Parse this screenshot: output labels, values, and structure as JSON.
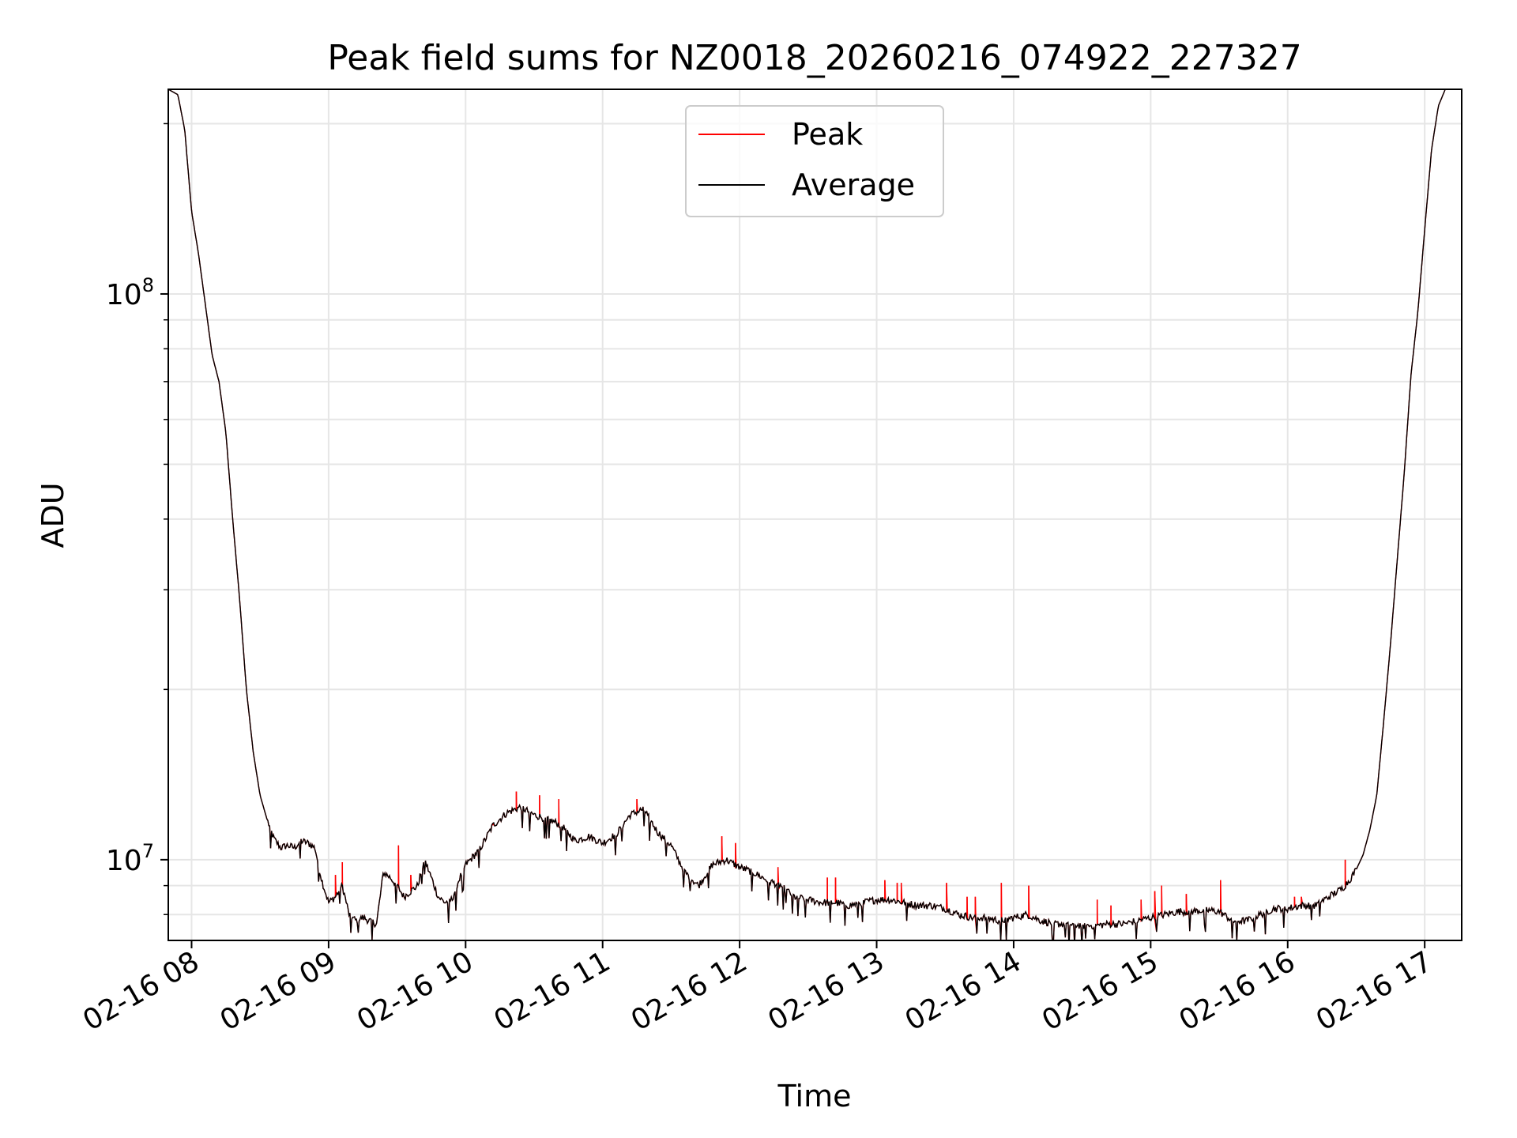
{
  "chart_data": {
    "type": "line",
    "title": "Peak field sums for NZ0018_20260216_074922_227327",
    "xlabel": "Time",
    "ylabel": "ADU",
    "yscale": "log",
    "ylim": [
      7200000,
      230000000
    ],
    "xlim": [
      7.83,
      17.27
    ],
    "grid": true,
    "legend": {
      "position": "top-center",
      "entries": [
        "Peak",
        "Average"
      ]
    },
    "colors": {
      "peak": "#ff0000",
      "average": "#000000",
      "grid": "#e6e6e6"
    },
    "x_ticks": [
      {
        "value": 8,
        "label": "02-16 08"
      },
      {
        "value": 9,
        "label": "02-16 09"
      },
      {
        "value": 10,
        "label": "02-16 10"
      },
      {
        "value": 11,
        "label": "02-16 11"
      },
      {
        "value": 12,
        "label": "02-16 12"
      },
      {
        "value": 13,
        "label": "02-16 13"
      },
      {
        "value": 14,
        "label": "02-16 14"
      },
      {
        "value": 15,
        "label": "02-16 15"
      },
      {
        "value": 16,
        "label": "02-16 16"
      },
      {
        "value": 17,
        "label": "02-16 17"
      }
    ],
    "y_ticks": [
      {
        "value": 10000000,
        "base": "10",
        "exp": "7"
      },
      {
        "value": 100000000,
        "base": "10",
        "exp": "8"
      }
    ],
    "series": [
      {
        "name": "Average",
        "x": [
          7.83,
          7.9,
          7.95,
          8.0,
          8.05,
          8.1,
          8.15,
          8.2,
          8.25,
          8.3,
          8.35,
          8.4,
          8.45,
          8.5,
          8.55,
          8.6,
          8.65,
          8.7,
          8.75,
          8.8,
          8.85,
          8.9,
          8.95,
          9.0,
          9.05,
          9.1,
          9.15,
          9.2,
          9.25,
          9.3,
          9.35,
          9.4,
          9.45,
          9.5,
          9.55,
          9.6,
          9.65,
          9.7,
          9.75,
          9.8,
          9.85,
          9.9,
          9.95,
          10.0,
          10.1,
          10.2,
          10.3,
          10.4,
          10.5,
          10.6,
          10.7,
          10.8,
          10.9,
          11.0,
          11.1,
          11.2,
          11.3,
          11.4,
          11.5,
          11.6,
          11.7,
          11.8,
          11.9,
          12.0,
          12.1,
          12.2,
          12.3,
          12.4,
          12.5,
          12.6,
          12.7,
          12.8,
          12.9,
          13.0,
          13.1,
          13.2,
          13.3,
          13.4,
          13.5,
          13.6,
          13.7,
          13.8,
          13.9,
          14.0,
          14.1,
          14.2,
          14.3,
          14.4,
          14.5,
          14.6,
          14.7,
          14.8,
          14.9,
          15.0,
          15.1,
          15.2,
          15.3,
          15.4,
          15.5,
          15.6,
          15.7,
          15.8,
          15.9,
          16.0,
          16.1,
          16.2,
          16.3,
          16.4,
          16.45,
          16.5,
          16.55,
          16.6,
          16.65,
          16.7,
          16.75,
          16.8,
          16.85,
          16.9,
          16.95,
          17.0,
          17.05,
          17.1,
          17.15,
          17.2,
          17.25
        ],
        "values": [
          230000000,
          225000000,
          195000000,
          140000000,
          118000000,
          96000000,
          78000000,
          70000000,
          57000000,
          40000000,
          29000000,
          20000000,
          15500000,
          13000000,
          11800000,
          10900000,
          10500000,
          10600000,
          10500000,
          10800000,
          10700000,
          10500000,
          9200000,
          8400000,
          8600000,
          9000000,
          8000000,
          7800000,
          7900000,
          7800000,
          7700000,
          9500000,
          9300000,
          9000000,
          8600000,
          8800000,
          9000000,
          10000000,
          9300000,
          8600000,
          8400000,
          8500000,
          9200000,
          9800000,
          10400000,
          11500000,
          12100000,
          12400000,
          12000000,
          11800000,
          11500000,
          10800000,
          11000000,
          10700000,
          11100000,
          12000000,
          12300000,
          11200000,
          10600000,
          9500000,
          9000000,
          9800000,
          10000000,
          9700000,
          9500000,
          9200000,
          9000000,
          8600000,
          8500000,
          8400000,
          8400000,
          8300000,
          8400000,
          8500000,
          8500000,
          8400000,
          8300000,
          8300000,
          8200000,
          8000000,
          7900000,
          7900000,
          7800000,
          7900000,
          8000000,
          7800000,
          7700000,
          7700000,
          7650000,
          7650000,
          7700000,
          7700000,
          7800000,
          7900000,
          8000000,
          8100000,
          8100000,
          8150000,
          8100000,
          7800000,
          7800000,
          8000000,
          8200000,
          8200000,
          8300000,
          8300000,
          8600000,
          8900000,
          9200000,
          9600000,
          10200000,
          11300000,
          13000000,
          17500000,
          24000000,
          34000000,
          48000000,
          72000000,
          93000000,
          130000000,
          180000000,
          215000000,
          230000000,
          230000000,
          230000000
        ]
      },
      {
        "name": "Peak",
        "spikes": [
          {
            "x": 9.05,
            "value": 9400000
          },
          {
            "x": 9.1,
            "value": 9900000
          },
          {
            "x": 9.51,
            "value": 10600000
          },
          {
            "x": 9.6,
            "value": 9400000
          },
          {
            "x": 10.2,
            "value": 11600000
          },
          {
            "x": 10.37,
            "value": 13200000
          },
          {
            "x": 10.54,
            "value": 13000000
          },
          {
            "x": 10.68,
            "value": 12800000
          },
          {
            "x": 11.25,
            "value": 12800000
          },
          {
            "x": 11.87,
            "value": 11000000
          },
          {
            "x": 11.97,
            "value": 10700000
          },
          {
            "x": 12.28,
            "value": 9700000
          },
          {
            "x": 12.64,
            "value": 9300000
          },
          {
            "x": 12.7,
            "value": 9300000
          },
          {
            "x": 13.06,
            "value": 9200000
          },
          {
            "x": 13.15,
            "value": 9100000
          },
          {
            "x": 13.18,
            "value": 9100000
          },
          {
            "x": 13.51,
            "value": 9100000
          },
          {
            "x": 13.66,
            "value": 8600000
          },
          {
            "x": 13.72,
            "value": 8600000
          },
          {
            "x": 13.91,
            "value": 9100000
          },
          {
            "x": 14.11,
            "value": 9000000
          },
          {
            "x": 14.61,
            "value": 8500000
          },
          {
            "x": 14.71,
            "value": 8300000
          },
          {
            "x": 14.93,
            "value": 8500000
          },
          {
            "x": 15.03,
            "value": 8800000
          },
          {
            "x": 15.08,
            "value": 9000000
          },
          {
            "x": 15.26,
            "value": 8700000
          },
          {
            "x": 15.51,
            "value": 9200000
          },
          {
            "x": 16.05,
            "value": 8600000
          },
          {
            "x": 16.1,
            "value": 8600000
          },
          {
            "x": 16.42,
            "value": 10000000
          }
        ]
      }
    ]
  }
}
